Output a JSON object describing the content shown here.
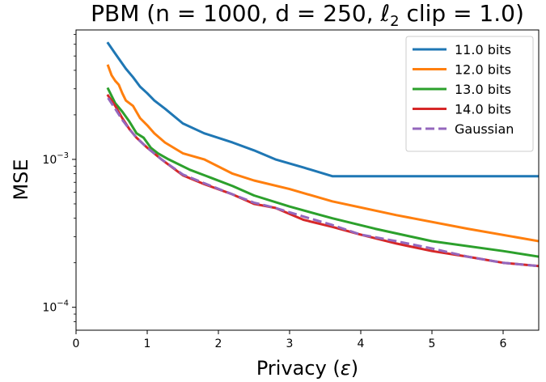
{
  "chart_data": {
    "type": "line",
    "title_parts": [
      "PBM (n = 1000, d = 250, ",
      "ℓ",
      "2",
      " clip = 1.0)"
    ],
    "xlabel_parts": [
      "Privacy (",
      "ε",
      ")"
    ],
    "ylabel": "MSE",
    "xlim": [
      0,
      6.5
    ],
    "ylim": [
      7e-05,
      0.0075
    ],
    "yscale": "log",
    "grid": false,
    "legend_position": "top-right",
    "x_ticks": [
      0,
      1,
      2,
      3,
      4,
      5,
      6
    ],
    "x_tick_labels": [
      "0",
      "1",
      "2",
      "3",
      "4",
      "5",
      "6"
    ],
    "y_major_ticks": [
      {
        "value": 0.0001,
        "base": "10",
        "exp": "−4"
      },
      {
        "value": 0.001,
        "base": "10",
        "exp": "−3"
      }
    ],
    "y_minor_ticks": [
      8e-05,
      9e-05,
      0.0002,
      0.0003,
      0.0004,
      0.0005,
      0.0006,
      0.0007,
      0.0008,
      0.0009,
      0.002,
      0.003,
      0.004,
      0.005,
      0.006,
      0.007
    ],
    "series": [
      {
        "name": "11.0 bits",
        "color": "#1f77b4",
        "dash": "solid",
        "x": [
          0.45,
          0.55,
          0.6,
          0.7,
          0.8,
          0.9,
          1.0,
          1.1,
          1.25,
          1.5,
          1.8,
          2.2,
          2.5,
          2.8,
          3.2,
          3.6,
          4.0,
          5.0,
          6.0,
          6.5
        ],
        "y": [
          0.0061,
          0.0052,
          0.0048,
          0.0041,
          0.0036,
          0.0031,
          0.0028,
          0.0025,
          0.0022,
          0.00175,
          0.0015,
          0.0013,
          0.00115,
          0.001,
          0.00088,
          0.00077,
          0.00077,
          0.00077,
          0.00077,
          0.00077
        ]
      },
      {
        "name": "12.0 bits",
        "color": "#ff7f0e",
        "dash": "solid",
        "x": [
          0.45,
          0.5,
          0.55,
          0.6,
          0.65,
          0.7,
          0.8,
          0.9,
          1.0,
          1.1,
          1.25,
          1.5,
          1.8,
          2.2,
          2.5,
          3.0,
          3.6,
          4.5,
          5.5,
          6.5
        ],
        "y": [
          0.0043,
          0.0037,
          0.0034,
          0.0032,
          0.0028,
          0.0025,
          0.0023,
          0.0019,
          0.0017,
          0.0015,
          0.0013,
          0.0011,
          0.001,
          0.0008,
          0.00072,
          0.00063,
          0.00052,
          0.00042,
          0.00034,
          0.00028
        ]
      },
      {
        "name": "13.0 bits",
        "color": "#2ca02c",
        "dash": "solid",
        "x": [
          0.45,
          0.55,
          0.65,
          0.75,
          0.85,
          0.95,
          1.05,
          1.15,
          1.3,
          1.6,
          1.9,
          2.2,
          2.5,
          3.0,
          3.6,
          4.2,
          5.0,
          6.0,
          6.5
        ],
        "y": [
          0.003,
          0.0024,
          0.0021,
          0.0018,
          0.0015,
          0.0014,
          0.0012,
          0.0011,
          0.001,
          0.00085,
          0.00075,
          0.00066,
          0.00057,
          0.00048,
          0.0004,
          0.00034,
          0.00028,
          0.00024,
          0.00022
        ]
      },
      {
        "name": "14.0 bits",
        "color": "#d62728",
        "dash": "solid",
        "x": [
          0.45,
          0.55,
          0.65,
          0.75,
          0.85,
          1.0,
          1.2,
          1.5,
          1.8,
          2.2,
          2.5,
          2.8,
          3.2,
          3.6,
          4.0,
          4.5,
          5.0,
          5.5,
          6.0,
          6.5
        ],
        "y": [
          0.0027,
          0.0023,
          0.0019,
          0.0016,
          0.0014,
          0.0012,
          0.001,
          0.00078,
          0.00068,
          0.00058,
          0.0005,
          0.00047,
          0.00039,
          0.00035,
          0.00031,
          0.00027,
          0.00024,
          0.00022,
          0.0002,
          0.00019
        ]
      },
      {
        "name": "Gaussian",
        "color": "#9467bd",
        "dash": "dashed",
        "x": [
          0.45,
          0.55,
          0.65,
          0.75,
          0.85,
          1.0,
          1.2,
          1.5,
          1.8,
          2.2,
          2.5,
          2.8,
          3.2,
          3.6,
          4.0,
          4.5,
          5.0,
          5.5,
          6.0,
          6.5
        ],
        "y": [
          0.0026,
          0.0022,
          0.00185,
          0.0016,
          0.0014,
          0.0012,
          0.001,
          0.00079,
          0.00069,
          0.00058,
          0.00051,
          0.00047,
          0.00041,
          0.00036,
          0.00031,
          0.00028,
          0.00025,
          0.00022,
          0.0002,
          0.00019
        ]
      }
    ]
  }
}
